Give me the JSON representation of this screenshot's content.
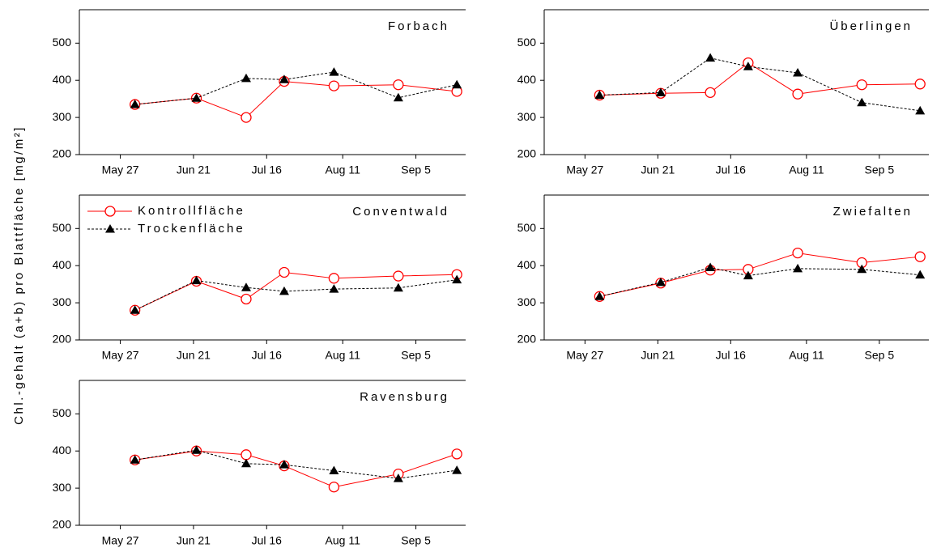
{
  "y_label": "Chl.-gehalt (a+b) pro Blattfläche [mg/m²]",
  "chart_data": [
    {
      "type": "line",
      "title": "Forbach",
      "x": [
        "Jun 1",
        "Jun 22",
        "Jul 9",
        "Jul 22",
        "Aug 8",
        "Aug 30",
        "Sep 19"
      ],
      "series": [
        {
          "name": "Kontrollfläche",
          "color": "#ff0000",
          "marker": "circle",
          "line_style": "solid",
          "values": [
            335,
            352,
            300,
            397,
            385,
            388,
            370
          ]
        },
        {
          "name": "Trockenfläche",
          "color": "#000000",
          "marker": "triangle",
          "line_style": "dashed",
          "values": [
            335,
            352,
            405,
            402,
            422,
            353,
            388
          ]
        }
      ],
      "xlim": [
        "May 13",
        "Sep 22"
      ],
      "xticks": [
        "May 27",
        "Jun 21",
        "Jul 16",
        "Aug 11",
        "Sep 5"
      ],
      "ylim": [
        200,
        590
      ],
      "yticks": [
        200,
        300,
        400,
        500
      ],
      "legend": false
    },
    {
      "type": "line",
      "title": "Überlingen",
      "x": [
        "Jun 1",
        "Jun 22",
        "Jul 9",
        "Jul 22",
        "Aug 8",
        "Aug 30",
        "Sep 19"
      ],
      "series": [
        {
          "name": "Kontrollfläche",
          "color": "#ff0000",
          "marker": "circle",
          "line_style": "solid",
          "values": [
            360,
            365,
            367,
            447,
            363,
            388,
            390
          ]
        },
        {
          "name": "Trockenfläche",
          "color": "#000000",
          "marker": "triangle",
          "line_style": "dashed",
          "values": [
            360,
            367,
            460,
            437,
            420,
            340,
            318
          ]
        }
      ],
      "xlim": [
        "May 13",
        "Sep 22"
      ],
      "xticks": [
        "May 27",
        "Jun 21",
        "Jul 16",
        "Aug 11",
        "Sep 5"
      ],
      "ylim": [
        200,
        590
      ],
      "yticks": [
        200,
        300,
        400,
        500
      ],
      "legend": false
    },
    {
      "type": "line",
      "title": "Conventwald",
      "x": [
        "Jun 1",
        "Jun 22",
        "Jul 9",
        "Jul 22",
        "Aug 8",
        "Aug 30",
        "Sep 19"
      ],
      "series": [
        {
          "name": "Kontrollfläche",
          "color": "#ff0000",
          "marker": "circle",
          "line_style": "solid",
          "values": [
            280,
            358,
            310,
            382,
            366,
            372,
            376
          ]
        },
        {
          "name": "Trockenfläche",
          "color": "#000000",
          "marker": "triangle",
          "line_style": "dashed",
          "values": [
            280,
            360,
            341,
            331,
            337,
            340,
            362
          ]
        }
      ],
      "xlim": [
        "May 13",
        "Sep 22"
      ],
      "xticks": [
        "May 27",
        "Jun 21",
        "Jul 16",
        "Aug 11",
        "Sep 5"
      ],
      "ylim": [
        200,
        590
      ],
      "yticks": [
        200,
        300,
        400,
        500
      ],
      "legend": true
    },
    {
      "type": "line",
      "title": "Zwiefalten",
      "x": [
        "Jun 1",
        "Jun 22",
        "Jul 9",
        "Jul 22",
        "Aug 8",
        "Aug 30",
        "Sep 19"
      ],
      "series": [
        {
          "name": "Kontrollfläche",
          "color": "#ff0000",
          "marker": "circle",
          "line_style": "solid",
          "values": [
            317,
            353,
            388,
            390,
            434,
            408,
            424
          ]
        },
        {
          "name": "Trockenfläche",
          "color": "#000000",
          "marker": "triangle",
          "line_style": "dashed",
          "values": [
            317,
            355,
            395,
            373,
            392,
            390,
            375
          ]
        }
      ],
      "xlim": [
        "May 13",
        "Sep 22"
      ],
      "xticks": [
        "May 27",
        "Jun 21",
        "Jul 16",
        "Aug 11",
        "Sep 5"
      ],
      "ylim": [
        200,
        590
      ],
      "yticks": [
        200,
        300,
        400,
        500
      ],
      "legend": false
    },
    {
      "type": "line",
      "title": "Ravensburg",
      "x": [
        "Jun 1",
        "Jun 22",
        "Jul 9",
        "Jul 22",
        "Aug 8",
        "Aug 30",
        "Sep 19"
      ],
      "series": [
        {
          "name": "Kontrollfläche",
          "color": "#ff0000",
          "marker": "circle",
          "line_style": "solid",
          "values": [
            376,
            400,
            390,
            360,
            303,
            338,
            392
          ]
        },
        {
          "name": "Trockenfläche",
          "color": "#000000",
          "marker": "triangle",
          "line_style": "dashed",
          "values": [
            376,
            402,
            366,
            363,
            347,
            326,
            348
          ]
        }
      ],
      "xlim": [
        "May 13",
        "Sep 22"
      ],
      "xticks": [
        "May 27",
        "Jun 21",
        "Jul 16",
        "Aug 11",
        "Sep 5"
      ],
      "ylim": [
        200,
        590
      ],
      "yticks": [
        200,
        300,
        400,
        500
      ],
      "legend": false
    }
  ]
}
